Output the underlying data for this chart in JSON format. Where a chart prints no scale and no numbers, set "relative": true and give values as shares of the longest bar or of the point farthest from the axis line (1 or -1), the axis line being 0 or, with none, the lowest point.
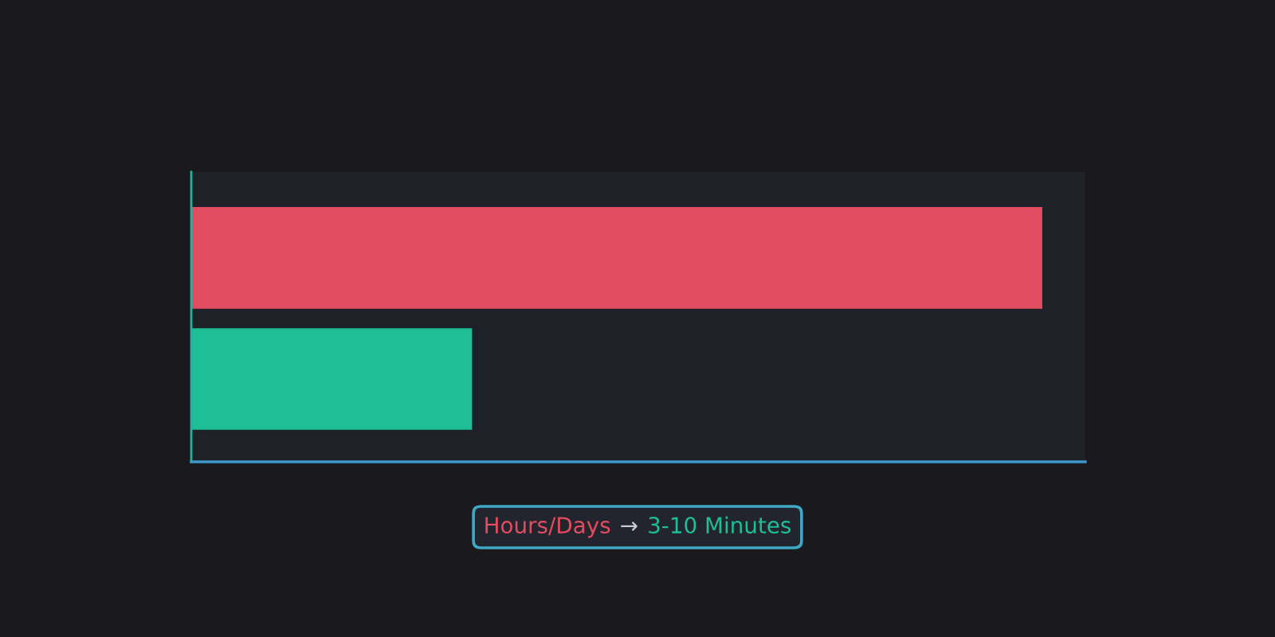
{
  "chart_data": {
    "type": "bar",
    "orientation": "horizontal",
    "relative": true,
    "categories": [
      null,
      null
    ],
    "values": [
      1,
      0.33
    ],
    "colors": [
      "#e24c60",
      "#1ebe96"
    ],
    "annotations": [
      "Hours/Days",
      "→",
      "3-10 Minutes"
    ]
  }
}
